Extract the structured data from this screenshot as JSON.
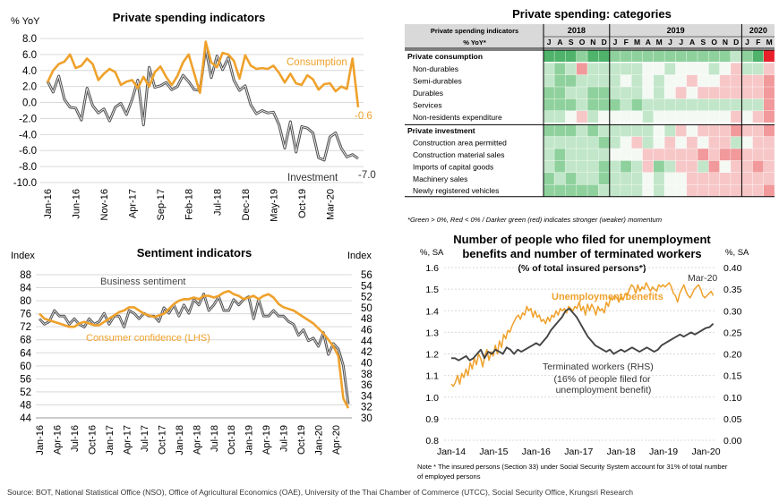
{
  "source": "Source: BOT, National Statistical Office (NSO), Office of Agricultural Economics (OAE), University of the Thai Chamber of Commerce (UTCC), Social Security Office, Krungsri Research",
  "colors": {
    "orange": "#EFA12B",
    "dark": "#555555",
    "grid": "#d9d9d9",
    "green": "#3daa5c",
    "red": "#e8202a"
  },
  "chart_data": [
    {
      "type": "line",
      "title": "Private spending indicators",
      "ylabel": "% YoY",
      "ylim": [
        -10,
        8
      ],
      "y_ticks": [
        "8.0",
        "6.0",
        "4.0",
        "2.0",
        "0.0",
        "-2.0",
        "-4.0",
        "-6.0",
        "-8.0",
        "-10.0"
      ],
      "x_ticks": [
        "Jan-16",
        "Jun-16",
        "Nov-16",
        "Apr-17",
        "Sep-17",
        "Feb-18",
        "Jul-18",
        "Dec-18",
        "May-19",
        "Oct-19",
        "Mar-20"
      ],
      "x_start": "Jan-16",
      "series": [
        {
          "name": "Consumption",
          "end_label": "-0.6",
          "values": [
            2.5,
            4.0,
            4.8,
            5.1,
            6.0,
            4.3,
            4.6,
            5.5,
            4.8,
            2.8,
            3.6,
            4.2,
            3.8,
            2.2,
            2.6,
            2.8,
            1.8,
            3.2,
            2.0,
            3.8,
            4.5,
            3.2,
            2.2,
            3.3,
            5.0,
            6.0,
            3.6,
            1.2,
            7.6,
            5.0,
            4.4,
            6.2,
            6.0,
            5.2,
            3.0,
            5.9,
            4.6,
            4.2,
            4.3,
            4.2,
            4.6,
            3.7,
            2.5,
            3.6,
            2.4,
            2.2,
            3.4,
            2.9,
            1.6,
            2.3,
            2.4,
            1.4,
            2.0,
            1.7,
            5.5,
            -0.6
          ]
        },
        {
          "name": "Investment",
          "end_label": "-7.0",
          "values": [
            2.7,
            1.3,
            3.3,
            0.4,
            -0.6,
            -0.7,
            -2.2,
            1.8,
            -0.4,
            -1.3,
            -0.8,
            -2.3,
            -0.6,
            -0.1,
            -1.5,
            0.4,
            2.8,
            -2.8,
            4.4,
            1.9,
            2.1,
            2.5,
            1.6,
            2.0,
            3.4,
            2.6,
            1.6,
            1.5,
            6.8,
            3.1,
            5.8,
            4.1,
            5.6,
            2.8,
            1.5,
            2.1,
            -0.3,
            -1.4,
            -1.0,
            -1.3,
            -1.2,
            -2.8,
            -5.7,
            -2.4,
            -6.2,
            -3.0,
            -3.2,
            -3.8,
            -6.9,
            -7.2,
            -4.3,
            -3.8,
            -5.7,
            -6.8,
            -6.5,
            -7.0
          ]
        }
      ]
    },
    {
      "type": "line",
      "title": "Sentiment indicators",
      "ylabel_left": "Index",
      "ylabel_right": "Index",
      "ylim_left": [
        44,
        88
      ],
      "ylim_right": [
        30,
        56
      ],
      "y_ticks_left": [
        "88",
        "84",
        "80",
        "76",
        "72",
        "68",
        "64",
        "60",
        "56",
        "52",
        "48",
        "44"
      ],
      "y_ticks_right": [
        "56",
        "54",
        "52",
        "50",
        "48",
        "46",
        "44",
        "42",
        "40",
        "38",
        "36",
        "34",
        "32",
        "30"
      ],
      "x_ticks": [
        "Jan-16",
        "Apr-16",
        "Jul-16",
        "Oct-16",
        "Jan-17",
        "Apr-17",
        "Jul-17",
        "Oct-17",
        "Jan-18",
        "Apr-18",
        "Jul-18",
        "Oct-18",
        "Jan-19",
        "Apr-19",
        "Jul-19",
        "Oct-19",
        "Jan-20",
        "Apr-20"
      ],
      "series": [
        {
          "name": "Business sentiment",
          "axis": "right",
          "values": [
            48.0,
            47.0,
            47.5,
            49.5,
            48.5,
            48.5,
            47.0,
            48.0,
            47.0,
            46.5,
            48.0,
            47.0,
            47.5,
            49.0,
            47.0,
            48.5,
            48.5,
            46.5,
            49.5,
            49.0,
            48.0,
            49.0,
            48.5,
            48.5,
            47.5,
            50.0,
            49.0,
            50.5,
            48.5,
            50.5,
            49.0,
            51.5,
            50.5,
            52.5,
            49.5,
            50.5,
            52.0,
            49.5,
            49.5,
            51.5,
            50.5,
            51.5,
            52.0,
            48.0,
            51.5,
            48.5,
            48.5,
            49.5,
            48.5,
            48.5,
            47.5,
            47.0,
            45.0,
            46.0,
            44.0,
            44.5,
            43.0,
            45.5,
            41.5,
            43.5,
            42.5,
            39.5,
            32.5
          ]
        },
        {
          "name": "Consumer confidence (LHS)",
          "axis": "left",
          "values": [
            76.0,
            74.5,
            74.0,
            73.5,
            73.0,
            72.5,
            72.0,
            72.0,
            73.0,
            73.5,
            73.0,
            72.5,
            72.5,
            73.5,
            74.5,
            75.5,
            76.5,
            77.0,
            78.0,
            78.0,
            77.0,
            76.0,
            75.5,
            75.0,
            75.5,
            76.0,
            77.5,
            79.0,
            80.0,
            80.5,
            80.5,
            81.0,
            80.5,
            81.5,
            81.5,
            81.0,
            81.5,
            82.5,
            83.0,
            82.0,
            81.5,
            80.5,
            81.0,
            81.5,
            80.5,
            81.5,
            82.0,
            81.0,
            79.0,
            78.0,
            77.5,
            77.0,
            76.0,
            75.0,
            74.0,
            73.0,
            71.5,
            70.0,
            68.0,
            66.0,
            63.0,
            50.0,
            47.0
          ]
        }
      ]
    },
    {
      "type": "heatmap",
      "title": "Private spending: categories",
      "header_label_1": "Private spending indicators",
      "header_label_2": "% YoY*",
      "years": [
        {
          "label": "2018",
          "span": 6
        },
        {
          "label": "2019",
          "span": 12
        },
        {
          "label": "2020",
          "span": 3
        }
      ],
      "months": [
        "J",
        "A",
        "S",
        "O",
        "N",
        "D",
        "J",
        "F",
        "M",
        "A",
        "M",
        "J",
        "J",
        "A",
        "S",
        "O",
        "N",
        "D",
        "J",
        "F",
        "M"
      ],
      "scale_note": "values are momentum scores: positive = green, negative = red, magnitude = intensity",
      "rows": [
        {
          "label": "Private consumption",
          "bold": true,
          "values": [
            3,
            3,
            3,
            2,
            3,
            3,
            2,
            2,
            2,
            2,
            2,
            2,
            2,
            2,
            2,
            2,
            2,
            1,
            2,
            3,
            -3
          ]
        },
        {
          "label": "Non-durables",
          "bold": false,
          "values": [
            1,
            2,
            1,
            -2,
            1,
            1,
            1,
            1,
            1,
            0,
            0,
            1,
            0,
            0,
            0,
            1,
            0,
            -1,
            1,
            1,
            -1
          ]
        },
        {
          "label": "Semi-durables",
          "bold": false,
          "values": [
            1,
            2,
            2,
            1,
            1,
            1,
            1,
            0,
            1,
            0,
            1,
            0,
            0,
            -1,
            0,
            0,
            -1,
            -1,
            -1,
            -1,
            -2
          ]
        },
        {
          "label": "Durables",
          "bold": false,
          "values": [
            2,
            2,
            1,
            1,
            2,
            2,
            1,
            1,
            1,
            0,
            1,
            0,
            -1,
            0,
            -1,
            -1,
            -1,
            -1,
            -1,
            -1,
            -2
          ]
        },
        {
          "label": "Services",
          "bold": false,
          "values": [
            2,
            2,
            2,
            1,
            2,
            2,
            2,
            1,
            2,
            1,
            1,
            1,
            1,
            1,
            1,
            1,
            1,
            1,
            1,
            1,
            -2
          ]
        },
        {
          "label": "Non-residents expenditure",
          "bold": false,
          "values": [
            1,
            1,
            0,
            -1,
            1,
            0,
            0,
            0,
            0,
            1,
            0,
            0,
            0,
            0,
            0,
            0,
            0,
            -1,
            0,
            -1,
            -2
          ]
        },
        {
          "label": "Private investment",
          "bold": true,
          "values": [
            2,
            2,
            2,
            1,
            2,
            1,
            1,
            1,
            1,
            1,
            0,
            1,
            -1,
            0,
            -1,
            -1,
            -1,
            -2,
            -1,
            -1,
            -2
          ]
        },
        {
          "label": "Construction area permitted",
          "bold": false,
          "values": [
            1,
            1,
            1,
            1,
            1,
            2,
            1,
            0,
            -1,
            1,
            0,
            -1,
            0,
            -1,
            0,
            -1,
            -1,
            1,
            0,
            -1,
            -1
          ]
        },
        {
          "label": "Construction material sales",
          "bold": false,
          "values": [
            1,
            2,
            1,
            1,
            1,
            1,
            0,
            0,
            0,
            -1,
            -1,
            -1,
            -1,
            -1,
            -2,
            -1,
            -2,
            -2,
            -1,
            -1,
            -1
          ]
        },
        {
          "label": "Imports of capital goods",
          "bold": false,
          "values": [
            1,
            2,
            1,
            1,
            1,
            2,
            1,
            2,
            1,
            -1,
            2,
            1,
            -1,
            -1,
            1,
            -2,
            0,
            -1,
            -1,
            -2,
            -1
          ]
        },
        {
          "label": "Machinery sales",
          "bold": false,
          "values": [
            2,
            1,
            2,
            1,
            1,
            2,
            1,
            1,
            1,
            0,
            1,
            0,
            0,
            -1,
            -1,
            -1,
            -1,
            -1,
            -1,
            -1,
            -1
          ]
        },
        {
          "label": "Newly registered vehicles",
          "bold": false,
          "values": [
            2,
            2,
            2,
            2,
            2,
            1,
            1,
            1,
            1,
            0,
            1,
            0,
            0,
            -1,
            -1,
            -1,
            -1,
            -1,
            -1,
            -1,
            -2
          ]
        }
      ],
      "footnote": "*Green > 0%, Red < 0% / Darker green (red) indicates stronger (weaker) momentum"
    },
    {
      "type": "line",
      "title_line1": "Number of people who filed for unemployment",
      "title_line2": "benefits and number of terminated workers",
      "subtitle": "(% of total insured persons*)",
      "ylabel_left": "%, SA",
      "ylabel_right": "%, SA",
      "ylim_left": [
        0.8,
        1.6
      ],
      "ylim_right": [
        0.0,
        0.4
      ],
      "y_ticks_left": [
        "1.6",
        "1.5",
        "1.4",
        "1.3",
        "1.2",
        "1.1",
        "1.0",
        "0.9",
        "0.8"
      ],
      "y_ticks_right": [
        "0.40",
        "0.35",
        "0.30",
        "0.25",
        "0.20",
        "0.15",
        "0.10",
        "0.05",
        "0.00"
      ],
      "x_ticks": [
        "Jan-14",
        "Jan-15",
        "Jan-16",
        "Jan-17",
        "Jan-18",
        "Jan-19",
        "Jan-20"
      ],
      "annotation": "Mar-20",
      "series": [
        {
          "name": "Unemployment benefits",
          "axis": "left",
          "values": [
            1.06,
            1.05,
            1.07,
            1.1,
            1.06,
            1.11,
            1.09,
            1.13,
            1.1,
            1.16,
            1.13,
            1.18,
            1.15,
            1.2,
            1.18,
            1.14,
            1.19,
            1.22,
            1.17,
            1.21,
            1.19,
            1.24,
            1.2,
            1.26,
            1.23,
            1.29,
            1.27,
            1.31,
            1.3,
            1.33,
            1.35,
            1.37,
            1.38,
            1.36,
            1.39,
            1.38,
            1.42,
            1.4,
            1.41,
            1.37,
            1.4,
            1.37,
            1.38,
            1.35,
            1.36,
            1.34,
            1.37,
            1.35,
            1.38,
            1.37,
            1.4,
            1.38,
            1.41,
            1.4,
            1.41,
            1.39,
            1.42,
            1.41,
            1.4,
            1.42,
            1.41,
            1.44,
            1.4,
            1.42,
            1.38,
            1.43,
            1.4,
            1.43,
            1.41,
            1.38,
            1.42,
            1.4,
            1.41,
            1.39,
            1.44,
            1.42,
            1.46,
            1.45,
            1.47,
            1.46,
            1.44,
            1.47,
            1.45,
            1.48,
            1.47,
            1.5,
            1.52,
            1.51,
            1.48,
            1.52,
            1.49,
            1.51,
            1.5,
            1.53,
            1.51,
            1.49,
            1.51,
            1.5,
            1.49,
            1.52,
            1.51,
            1.52,
            1.51,
            1.52,
            1.53,
            1.51,
            1.48,
            1.47,
            1.44,
            1.48,
            1.5,
            1.52,
            1.49,
            1.47,
            1.46,
            1.48,
            1.5,
            1.51,
            1.52,
            1.5,
            1.47,
            1.46,
            1.47,
            1.48,
            1.49,
            1.47
          ]
        },
        {
          "name": "Terminated workers (RHS)",
          "axis": "right",
          "note": "(16% of people filed for unemployment benefit)",
          "values": [
            0.19,
            0.19,
            0.185,
            0.19,
            0.195,
            0.185,
            0.19,
            0.2,
            0.21,
            0.19,
            0.205,
            0.2,
            0.21,
            0.205,
            0.2,
            0.215,
            0.21,
            0.2,
            0.21,
            0.205,
            0.21,
            0.215,
            0.22,
            0.225,
            0.22,
            0.23,
            0.24,
            0.255,
            0.265,
            0.275,
            0.285,
            0.3,
            0.305,
            0.295,
            0.285,
            0.27,
            0.255,
            0.24,
            0.23,
            0.22,
            0.215,
            0.21,
            0.205,
            0.21,
            0.2,
            0.205,
            0.21,
            0.205,
            0.21,
            0.215,
            0.21,
            0.205,
            0.21,
            0.215,
            0.21,
            0.205,
            0.21,
            0.22,
            0.225,
            0.23,
            0.235,
            0.24,
            0.245,
            0.24,
            0.245,
            0.25,
            0.245,
            0.25,
            0.255,
            0.26,
            0.262,
            0.27
          ]
        }
      ],
      "footnote_line1": "Note * The insured persons (Section 33) under Social Security System account for 31% of total number",
      "footnote_line2": "of employed persons"
    }
  ]
}
